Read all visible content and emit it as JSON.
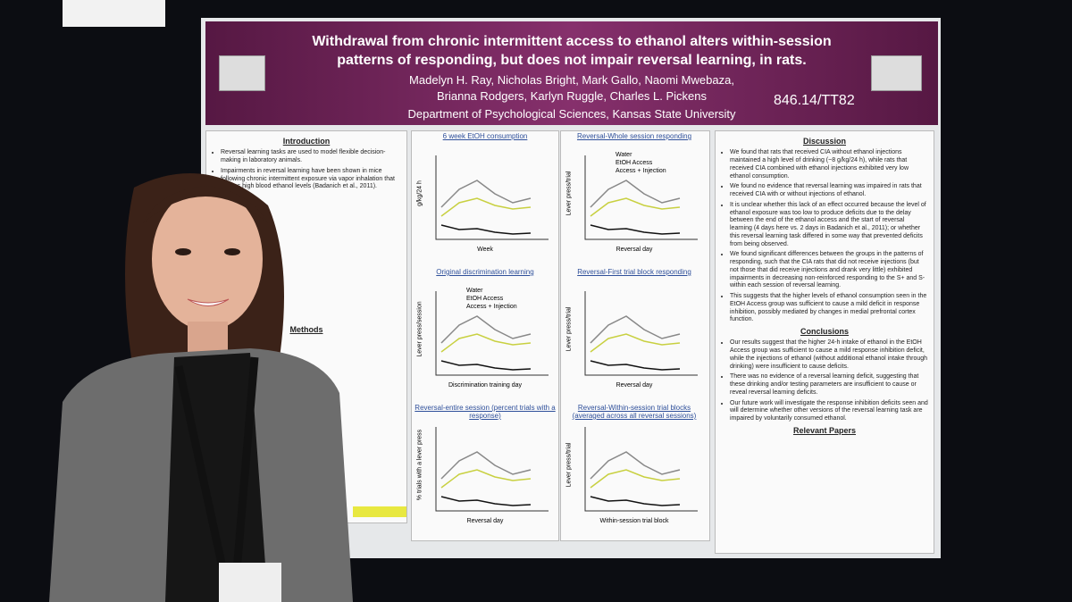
{
  "header": {
    "title_lines": [
      "Withdrawal from chronic intermittent access to ethanol alters within-session",
      "patterns of responding, but does not impair reversal learning, in rats."
    ],
    "authors": [
      "Madelyn H. Ray, Nicholas Bright, Mark Gallo, Naomi Mwebaza,",
      "Brianna Rodgers, Karlyn Ruggle, Charles L. Pickens"
    ],
    "department": "Department of Psychological Sciences, Kansas State University",
    "poster_number": "846.14/TT82"
  },
  "introduction": {
    "heading": "Introduction",
    "bullets": [
      "Reversal learning tasks are used to model flexible decision-making in laboratory animals.",
      "Impairments in reversal learning have been shown in mice following chronic intermittent exposure via vapor inhalation that causes high blood ethanol levels (Badanich et al., 2011)."
    ]
  },
  "methods": {
    "heading": "Methods"
  },
  "legend": [
    "Water",
    "EtOH Access",
    "Access + Injection"
  ],
  "charts": [
    {
      "title": "6 week EtOH consumption",
      "xlabel": "Week",
      "ylabel": "g/kg/24 h"
    },
    {
      "title": "Original discrimination learning",
      "xlabel": "Discrimination training day",
      "ylabel": "Lever press/session"
    },
    {
      "title": "Reversal-entire session (percent trials with a response)",
      "xlabel": "Reversal day",
      "ylabel": "% trials with a lever press"
    },
    {
      "title": "Reversal-Whole session responding",
      "xlabel": "Reversal day",
      "ylabel": "Lever press/trial"
    },
    {
      "title": "Reversal-First trial block responding",
      "xlabel": "Reversal day",
      "ylabel": "Lever press/trial"
    },
    {
      "title": "Reversal-Within-session trial blocks (averaged across all reversal sessions)",
      "xlabel": "Within-session trial block",
      "ylabel": "Lever press/trial"
    }
  ],
  "discussion": {
    "heading": "Discussion",
    "bullets": [
      "We found that rats that received CIA without ethanol injections maintained a high level of drinking (~8 g/kg/24 h), while rats that received CIA combined with ethanol injections exhibited very low ethanol consumption.",
      "We found no evidence that reversal learning was impaired in rats that received CIA with or without injections of ethanol.",
      "It is unclear whether this lack of an effect occurred because the level of ethanol exposure was too low to produce deficits due to the delay between the end of the ethanol access and the start of reversal learning (4 days here vs. 2 days in Badanich et al., 2011); or whether this reversal learning task differed in some way that prevented deficits from being observed.",
      "We found significant differences between the groups in the patterns of responding, such that the CIA rats that did not receive injections (but not those that did receive injections and drank very little) exhibited impairments in decreasing non-reinforced responding to the S+ and S- within each session of reversal learning.",
      "This suggests that the higher levels of ethanol consumption seen in the EtOH Access group was sufficient to cause a mild deficit in response inhibition, possibly mediated by changes in medial prefrontal cortex function."
    ]
  },
  "conclusions": {
    "heading": "Conclusions",
    "bullets": [
      "Our results suggest that the higher 24-h intake of ethanol in the EtOH Access group was sufficient to cause a mild response inhibition deficit, while the injections of ethanol (without additional ethanol intake through drinking) were insufficient to cause deficits.",
      "There was no evidence of a reversal learning deficit, suggesting that these drinking and/or testing parameters are insufficient to cause or reveal reversal learning deficits.",
      "Our future work will investigate the response inhibition deficits seen and will determine whether other versions of the reversal learning task are impaired by voluntarily consumed ethanol."
    ]
  },
  "relevant_papers": {
    "heading": "Relevant Papers"
  }
}
